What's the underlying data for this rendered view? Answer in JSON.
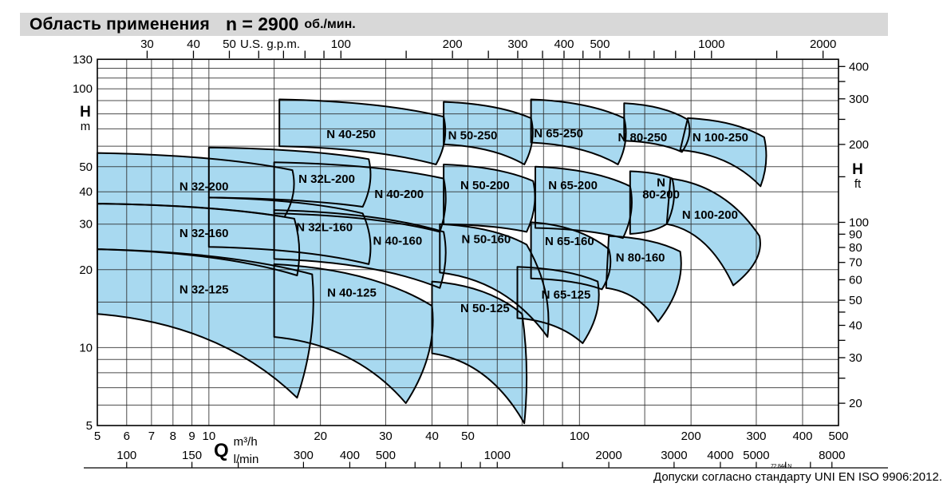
{
  "title": {
    "main": "Область применения",
    "speed": "n = 2900",
    "unit": "об./мин."
  },
  "footer": {
    "tolerance": "Допуски согласно стандарту UNI EN ISO 9906:2012.",
    "doc_code": "72.844 N"
  },
  "colors": {
    "title_bg": "#d8d8d8",
    "region_fill": "#a8d9f0",
    "region_stroke": "#000000",
    "grid": "#2b2b2b",
    "frame": "#000000",
    "text": "#000000"
  },
  "chart_data": {
    "type": "area",
    "title": "Область применения n = 2900 об./мин.",
    "scale": "log-log",
    "grid": "on",
    "x_axis": {
      "label": "Q",
      "units": [
        "m³/h",
        "l/min",
        "U.S. g.p.m."
      ],
      "range_m3h": [
        5,
        500
      ],
      "m3h_gridlines": [
        5,
        6,
        7,
        8,
        9,
        10,
        15,
        20,
        30,
        40,
        50,
        60,
        70,
        80,
        90,
        100,
        150,
        200,
        300,
        400,
        500
      ],
      "m3h_labels": [
        5,
        6,
        7,
        8,
        9,
        10,
        20,
        30,
        40,
        50,
        100,
        200,
        300,
        400,
        500
      ],
      "lmin_ticks": [
        100,
        150,
        200,
        300,
        400,
        500,
        600,
        700,
        800,
        900,
        1000,
        1500,
        2000,
        3000,
        4000,
        5000,
        6000,
        7000,
        8000
      ],
      "lmin_labels": [
        100,
        150,
        300,
        400,
        500,
        1000,
        2000,
        3000,
        4000,
        5000,
        8000
      ],
      "gpm_ticks": [
        30,
        40,
        50,
        60,
        70,
        80,
        90,
        100,
        150,
        200,
        250,
        300,
        350,
        400,
        450,
        500,
        600,
        700,
        800,
        900,
        1000,
        1500,
        2000
      ],
      "gpm_labels": [
        30,
        40,
        50,
        100,
        200,
        300,
        400,
        500,
        1000,
        2000
      ],
      "lmin_per_m3h": 16.6667,
      "gpm_per_m3h": 4.4029
    },
    "y_axis": {
      "label": "H",
      "units": [
        "m",
        "ft"
      ],
      "range_m": [
        5,
        130
      ],
      "m_gridlines": [
        5,
        6,
        7,
        8,
        9,
        10,
        15,
        20,
        30,
        40,
        50,
        60,
        70,
        80,
        90,
        100,
        110,
        120,
        130
      ],
      "m_labels": [
        130,
        100,
        50,
        40,
        30,
        20,
        10,
        5
      ],
      "ft_ticks": [
        20,
        25,
        30,
        35,
        40,
        45,
        50,
        60,
        70,
        80,
        90,
        100,
        150,
        200,
        250,
        300,
        350,
        400
      ],
      "ft_labels": [
        20,
        30,
        40,
        50,
        60,
        70,
        80,
        90,
        100,
        200,
        300,
        400
      ],
      "ft_per_m": 3.2808
    },
    "regions": [
      {
        "name": "N 32-125",
        "label_lines": [
          "N 32-125"
        ],
        "label_at": [
          9.7,
          16.8
        ],
        "corners_qh": {
          "tl": [
            5,
            24
          ],
          "tr": [
            19,
            19.2
          ],
          "br": [
            17.3,
            6.4
          ],
          "bl": [
            5,
            13.5
          ]
        }
      },
      {
        "name": "N 40-125",
        "label_lines": [
          "N 40-125"
        ],
        "label_at": [
          24.3,
          16.3
        ],
        "corners_qh": {
          "tl": [
            15,
            21
          ],
          "tr": [
            40,
            14.5
          ],
          "br": [
            34,
            6.1
          ],
          "bl": [
            15,
            11
          ]
        }
      },
      {
        "name": "N 50-125",
        "label_lines": [
          "N 50-125"
        ],
        "label_at": [
          55.6,
          14.2
        ],
        "corners_qh": {
          "tl": [
            40,
            18
          ],
          "tr": [
            70,
            13.5
          ],
          "br": [
            71,
            5.1
          ],
          "bl": [
            40,
            9.5
          ]
        }
      },
      {
        "name": "N 65-125",
        "label_lines": [
          "N 65-125"
        ],
        "label_at": [
          92,
          16
        ],
        "corners_qh": {
          "tl": [
            68,
            20.5
          ],
          "tr": [
            112,
            18
          ],
          "br": [
            102,
            10.4
          ],
          "bl": [
            68,
            13
          ]
        }
      },
      {
        "name": "N 32-160",
        "label_lines": [
          "N 32-160"
        ],
        "label_at": [
          9.7,
          27.7
        ],
        "corners_qh": {
          "tl": [
            5,
            36
          ],
          "tr": [
            17,
            31.5
          ],
          "br": [
            17.3,
            19
          ],
          "bl": [
            5,
            24
          ]
        }
      },
      {
        "name": "N 32L-160",
        "label_lines": [
          "N 32L-160"
        ],
        "label_at": [
          20.5,
          29.2
        ],
        "corners_qh": {
          "tl": [
            10,
            38
          ],
          "tr": [
            26,
            33
          ],
          "br": [
            27,
            21
          ],
          "bl": [
            10,
            24.5
          ]
        }
      },
      {
        "name": "N 40-160",
        "label_lines": [
          "N 40-160"
        ],
        "label_at": [
          32.3,
          25.9
        ],
        "corners_qh": {
          "tl": [
            15,
            34
          ],
          "tr": [
            43,
            28
          ],
          "br": [
            42,
            17
          ],
          "bl": [
            15,
            22
          ]
        }
      },
      {
        "name": "N 50-160",
        "label_lines": [
          "N 50-160"
        ],
        "label_at": [
          56,
          26.3
        ],
        "corners_qh": {
          "tl": [
            42,
            30
          ],
          "tr": [
            72,
            25
          ],
          "br": [
            82,
            11
          ],
          "bl": [
            42,
            19.5
          ]
        }
      },
      {
        "name": "N 65-160",
        "label_lines": [
          "N 65-160"
        ],
        "label_at": [
          94,
          25.8
        ],
        "corners_qh": {
          "tl": [
            74,
            30.5
          ],
          "tr": [
            120,
            24
          ],
          "br": [
            115,
            16.8
          ],
          "bl": [
            74,
            18.5
          ]
        }
      },
      {
        "name": "N 80-160",
        "label_lines": [
          "N 80-160"
        ],
        "label_at": [
          146,
          22.3
        ],
        "corners_qh": {
          "tl": [
            120,
            27
          ],
          "tr": [
            187,
            23.5
          ],
          "br": [
            163,
            12.6
          ],
          "bl": [
            118,
            17
          ]
        }
      },
      {
        "name": "N 32-200",
        "label_lines": [
          "N 32-200"
        ],
        "label_at": [
          9.7,
          42
        ],
        "corners_qh": {
          "tl": [
            5,
            56.5
          ],
          "tr": [
            16.8,
            48.5
          ],
          "br": [
            16,
            32
          ],
          "bl": [
            5,
            36
          ]
        }
      },
      {
        "name": "N 32L-200",
        "label_lines": [
          "N 32L-200"
        ],
        "label_at": [
          20.8,
          44.9
        ],
        "corners_qh": {
          "tl": [
            10,
            59.3
          ],
          "tr": [
            27,
            53.5
          ],
          "br": [
            26,
            35
          ],
          "bl": [
            10,
            38
          ]
        }
      },
      {
        "name": "N 40-200",
        "label_lines": [
          "N 40-200"
        ],
        "label_at": [
          32.6,
          39.2
        ],
        "corners_qh": {
          "tl": [
            15,
            52
          ],
          "tr": [
            43,
            45
          ],
          "br": [
            42,
            28
          ],
          "bl": [
            15,
            33
          ]
        }
      },
      {
        "name": "N 50-200",
        "label_lines": [
          "N 50-200"
        ],
        "label_at": [
          55.6,
          42.4
        ],
        "corners_qh": {
          "tl": [
            43,
            51
          ],
          "tr": [
            75,
            44
          ],
          "br": [
            72,
            28
          ],
          "bl": [
            43,
            30
          ]
        }
      },
      {
        "name": "N 65-200",
        "label_lines": [
          "N 65-200"
        ],
        "label_at": [
          96,
          42.4
        ],
        "corners_qh": {
          "tl": [
            76,
            50
          ],
          "tr": [
            137,
            42
          ],
          "br": [
            131,
            26.5
          ],
          "bl": [
            76,
            29
          ]
        }
      },
      {
        "name": "N 80-200",
        "label_lines": [
          "N",
          "80-200"
        ],
        "label_at": [
          166,
          41
        ],
        "corners_qh": {
          "tl": [
            137,
            48
          ],
          "tr": [
            178,
            45
          ],
          "br": [
            172,
            30
          ],
          "bl": [
            137,
            27.5
          ]
        }
      },
      {
        "name": "N 100-200",
        "label_lines": [
          "N 100-200"
        ],
        "label_at": [
          225,
          32.6
        ],
        "corners_qh": {
          "tl": [
            176,
            45
          ],
          "tr": [
            306,
            27
          ],
          "br": [
            260,
            17.4
          ],
          "bl": [
            172,
            30
          ]
        }
      },
      {
        "name": "N 40-250",
        "label_lines": [
          "N 40-250"
        ],
        "label_at": [
          24.2,
          66.9
        ],
        "corners_qh": {
          "tl": [
            15.5,
            91
          ],
          "tr": [
            43,
            78
          ],
          "br": [
            41,
            51
          ],
          "bl": [
            15.5,
            60
          ]
        }
      },
      {
        "name": "N 50-250",
        "label_lines": [
          "N 50-250"
        ],
        "label_at": [
          51.5,
          66
        ],
        "corners_qh": {
          "tl": [
            43,
            89
          ],
          "tr": [
            74,
            77
          ],
          "br": [
            71,
            51
          ],
          "bl": [
            43,
            61
          ]
        }
      },
      {
        "name": "N 65-250",
        "label_lines": [
          "N 65-250"
        ],
        "label_at": [
          87.8,
          67.3
        ],
        "corners_qh": {
          "tl": [
            74,
            91
          ],
          "tr": [
            132,
            77
          ],
          "br": [
            127,
            51
          ],
          "bl": [
            74,
            62
          ]
        }
      },
      {
        "name": "N 80-250",
        "label_lines": [
          "N 80-250"
        ],
        "label_at": [
          148,
          64.9
        ],
        "corners_qh": {
          "tl": [
            132,
            88
          ],
          "tr": [
            196,
            76
          ],
          "br": [
            189,
            57
          ],
          "bl": [
            132,
            63
          ]
        }
      },
      {
        "name": "N 100-250",
        "label_lines": [
          "N 100-250"
        ],
        "label_at": [
          240,
          64.9
        ],
        "corners_qh": {
          "tl": [
            196,
            77
          ],
          "tr": [
            315,
            65
          ],
          "br": [
            308,
            42
          ],
          "bl": [
            187,
            58
          ]
        }
      }
    ]
  }
}
